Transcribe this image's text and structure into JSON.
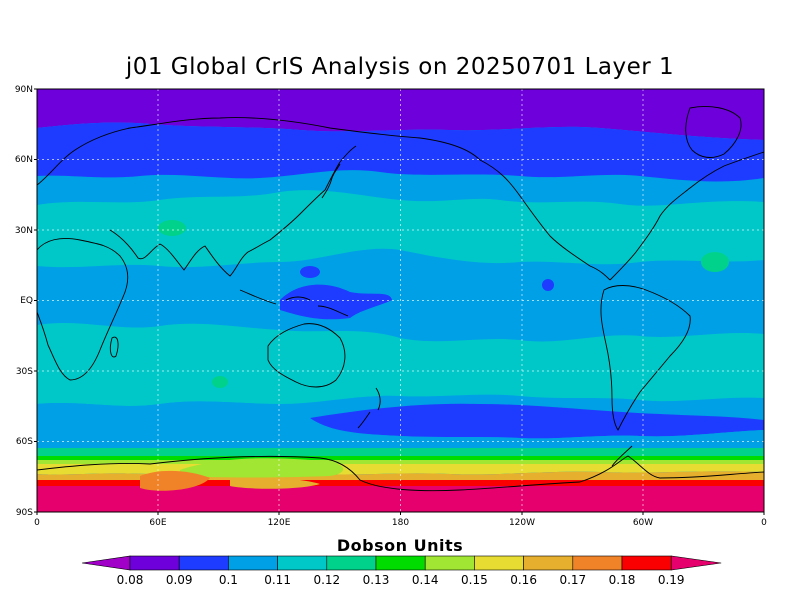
{
  "title": "j01 Global CrIS Analysis on 20250701 Layer 1",
  "lat_labels": [
    "90N",
    "60N",
    "30N",
    "EQ",
    "30S",
    "60S",
    "90S"
  ],
  "lon_labels": [
    "0",
    "60E",
    "120E",
    "180",
    "120W",
    "60W",
    "0"
  ],
  "colorbar": {
    "title": "Dobson Units",
    "levels": [
      "0.08",
      "0.09",
      "0.1",
      "0.11",
      "0.12",
      "0.13",
      "0.14",
      "0.15",
      "0.16",
      "0.17",
      "0.18",
      "0.19"
    ],
    "colors": [
      "#a000c8",
      "#6e00dc",
      "#1e3cff",
      "#00a0e6",
      "#00c8c8",
      "#00d28c",
      "#00dc00",
      "#a0e632",
      "#e6dc32",
      "#e6af2d",
      "#f08228",
      "#fa0000",
      "#e6006e"
    ]
  },
  "map_colors": {
    "polar_north": "#6e00dc",
    "blue": "#1e3cff",
    "light_blue": "#00a0e6",
    "cyan": "#00c8c8",
    "teal": "#00d28c",
    "green": "#00dc00",
    "yellowgreen": "#a0e632",
    "yellow": "#e6dc32",
    "orange": "#e6af2d",
    "darkorange": "#f08228",
    "red": "#fa0000",
    "magenta": "#e6006e"
  }
}
